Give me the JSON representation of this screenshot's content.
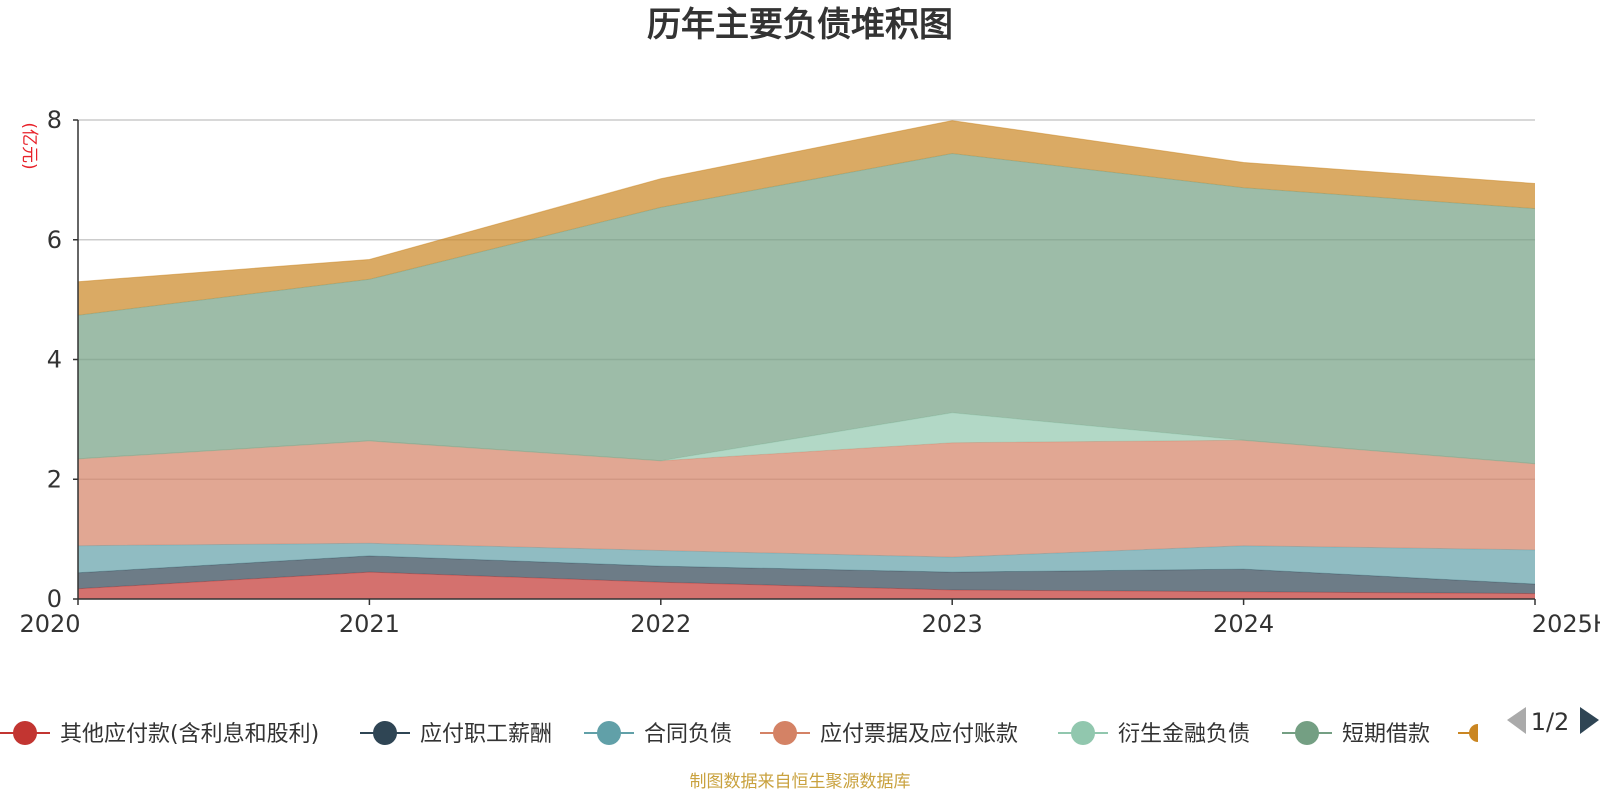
{
  "chart_data": {
    "type": "area",
    "stacked": true,
    "title": "历年主要负债堆积图",
    "y_unit": "(亿元)",
    "ylim": [
      0,
      8
    ],
    "y_ticks": [
      "0",
      "2",
      "4",
      "6",
      "8"
    ],
    "grid": true,
    "categories": [
      "2020",
      "2021",
      "2022",
      "2023",
      "2024",
      "2025H1"
    ],
    "series": [
      {
        "name": "其他应付款(含利息和股利)",
        "color": "#c23531",
        "values": [
          0.17,
          0.45,
          0.28,
          0.15,
          0.12,
          0.09
        ]
      },
      {
        "name": "应付职工薪酬",
        "color": "#2f4554",
        "values": [
          0.27,
          0.27,
          0.27,
          0.3,
          0.38,
          0.16
        ]
      },
      {
        "name": "合同负债",
        "color": "#61a0a8",
        "values": [
          0.45,
          0.21,
          0.26,
          0.25,
          0.39,
          0.57
        ]
      },
      {
        "name": "应付票据及应付账款",
        "color": "#d48265",
        "values": [
          1.45,
          1.71,
          1.5,
          1.91,
          1.76,
          1.44
        ]
      },
      {
        "name": "衍生金融负债",
        "color": "#91c7ae",
        "values": [
          0.0,
          0.0,
          0.0,
          0.5,
          0.0,
          0.0
        ]
      },
      {
        "name": "短期借款",
        "color": "#749f83",
        "values": [
          2.4,
          2.7,
          4.23,
          4.33,
          4.22,
          4.26
        ]
      },
      {
        "name": "",
        "color": "#ca8622",
        "values": [
          0.56,
          0.33,
          0.48,
          0.55,
          0.42,
          0.42
        ]
      }
    ],
    "legend_position": "bottom",
    "legend_page": "1/2"
  },
  "footer": {
    "source": "制图数据来自恒生聚源数据库"
  },
  "icons": {
    "prev": "triangle-left-icon",
    "next": "triangle-right-icon"
  }
}
